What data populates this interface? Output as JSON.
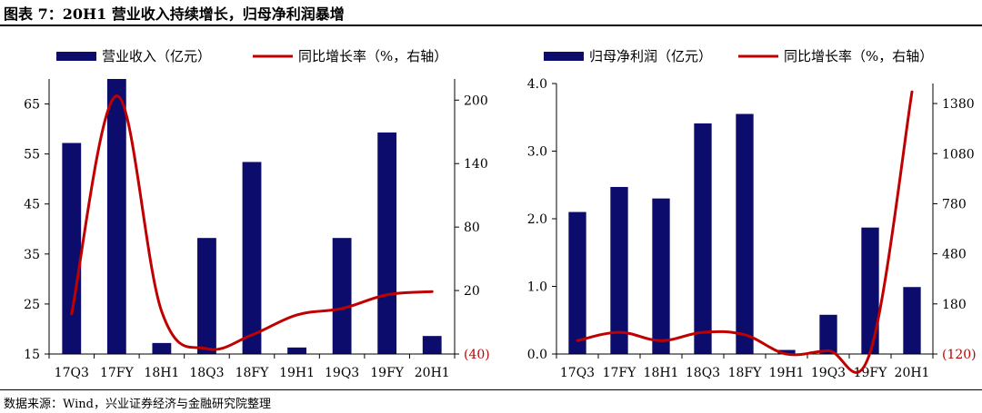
{
  "title": "图表 7：20H1 营业收入持续增长，归母净利润暴增",
  "source": "数据来源：Wind，兴业证券经济与金融研究院整理",
  "colors": {
    "bar": "#0b0c6b",
    "line": "#c00000",
    "negative_tick": "#c00000",
    "axis": "#000000"
  },
  "chart_data": [
    {
      "type": "bar",
      "combo": "bar+line",
      "categories": [
        "17Q3",
        "17FY",
        "18H1",
        "18Q3",
        "18FY",
        "19H1",
        "19Q3",
        "19FY",
        "20H1"
      ],
      "legend": [
        "营业收入（亿元）",
        "同比增长率（%，右轴）"
      ],
      "series": [
        {
          "name": "营业收入（亿元）",
          "type": "bar",
          "axis": "left",
          "values": [
            57.2,
            70.2,
            17.2,
            38.2,
            53.4,
            16.3,
            38.2,
            59.3,
            18.6
          ]
        },
        {
          "name": "同比增长率（%，右轴）",
          "type": "line",
          "axis": "right",
          "values": [
            -2,
            204,
            0,
            -35,
            -22,
            -3,
            3,
            16,
            19
          ]
        }
      ],
      "ylim": [
        15,
        70
      ],
      "y_ticks": [
        15,
        25,
        35,
        45,
        55,
        65
      ],
      "y2lim": [
        -40,
        220
      ],
      "y2_ticks": [
        -40,
        20,
        80,
        140,
        200
      ],
      "y2_tick_labels": [
        "(40)",
        "20",
        "80",
        "140",
        "200"
      ],
      "grid": false,
      "legend_position": "top"
    },
    {
      "type": "bar",
      "combo": "bar+line",
      "categories": [
        "17Q3",
        "17FY",
        "18H1",
        "18Q3",
        "18FY",
        "19H1",
        "19Q3",
        "19FY",
        "20H1"
      ],
      "legend": [
        "归母净利润（亿元）",
        "同比增长率（%，右轴）"
      ],
      "series": [
        {
          "name": "归母净利润（亿元）",
          "type": "bar",
          "axis": "left",
          "values": [
            2.1,
            2.47,
            2.3,
            3.41,
            3.55,
            0.06,
            0.58,
            1.87,
            0.99
          ]
        },
        {
          "name": "同比增长率（%，右轴）",
          "type": "line",
          "axis": "right",
          "values": [
            -40,
            10,
            -40,
            10,
            -5,
            -120,
            -100,
            -110,
            1450
          ]
        }
      ],
      "ylim": [
        0,
        4
      ],
      "y_ticks": [
        0,
        1,
        2,
        3,
        4
      ],
      "y_tick_labels": [
        "0.0",
        "1.0",
        "2.0",
        "3.0",
        "4.0"
      ],
      "y2lim": [
        -120,
        1500
      ],
      "y2_ticks": [
        -120,
        180,
        480,
        780,
        1080,
        1380
      ],
      "y2_tick_labels": [
        "(120)",
        "180",
        "480",
        "780",
        "1080",
        "1380"
      ],
      "grid": false,
      "legend_position": "top"
    }
  ]
}
